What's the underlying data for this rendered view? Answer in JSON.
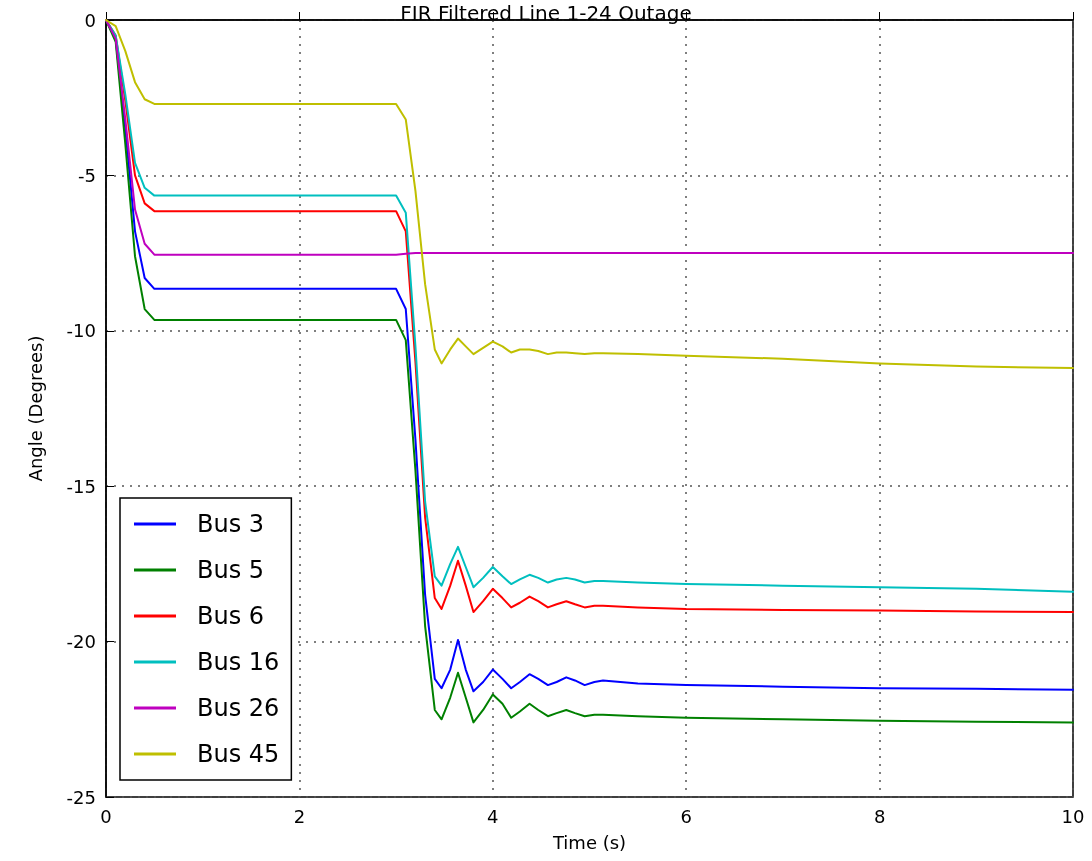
{
  "chart_data": {
    "type": "line",
    "title": "FIR Filtered Line 1-24 Outage",
    "xlabel": "Time (s)",
    "ylabel": "Angle (Degrees)",
    "x": [
      0,
      0.1,
      0.2,
      0.3,
      0.4,
      0.5,
      1,
      2,
      3,
      3.1,
      3.2,
      3.3,
      3.4,
      3.47,
      3.56,
      3.64,
      3.72,
      3.8,
      3.9,
      4.0,
      4.1,
      4.19,
      4.28,
      4.38,
      4.47,
      4.57,
      4.66,
      4.76,
      4.85,
      4.95,
      5.05,
      5.14,
      5.5,
      6,
      7,
      8,
      9,
      10
    ],
    "series": [
      {
        "name": "Bus 3",
        "color": "#0000ff",
        "values": [
          0,
          -0.6,
          -3.5,
          -6.8,
          -8.3,
          -8.65,
          -8.65,
          -8.65,
          -8.65,
          -9.3,
          -13.5,
          -18.5,
          -21.2,
          -21.5,
          -20.9,
          -19.95,
          -20.9,
          -21.6,
          -21.3,
          -20.9,
          -21.2,
          -21.5,
          -21.3,
          -21.05,
          -21.2,
          -21.4,
          -21.3,
          -21.15,
          -21.25,
          -21.4,
          -21.3,
          -21.25,
          -21.35,
          -21.4,
          -21.45,
          -21.5,
          -21.52,
          -21.55
        ]
      },
      {
        "name": "Bus 5",
        "color": "#008000",
        "values": [
          0,
          -0.7,
          -4,
          -7.6,
          -9.3,
          -9.65,
          -9.65,
          -9.65,
          -9.65,
          -10.3,
          -14.5,
          -19.5,
          -22.2,
          -22.5,
          -21.8,
          -21,
          -21.8,
          -22.6,
          -22.2,
          -21.7,
          -22,
          -22.45,
          -22.25,
          -22,
          -22.2,
          -22.4,
          -22.3,
          -22.2,
          -22.3,
          -22.4,
          -22.35,
          -22.35,
          -22.4,
          -22.45,
          -22.5,
          -22.55,
          -22.58,
          -22.6
        ]
      },
      {
        "name": "Bus 6",
        "color": "#ff0000",
        "values": [
          0,
          -0.5,
          -2.6,
          -5,
          -5.9,
          -6.15,
          -6.15,
          -6.15,
          -6.15,
          -6.8,
          -11,
          -16,
          -18.6,
          -18.95,
          -18.2,
          -17.4,
          -18.2,
          -19.05,
          -18.7,
          -18.3,
          -18.6,
          -18.9,
          -18.75,
          -18.55,
          -18.7,
          -18.9,
          -18.8,
          -18.7,
          -18.8,
          -18.9,
          -18.85,
          -18.85,
          -18.9,
          -18.95,
          -18.98,
          -19,
          -19.03,
          -19.05
        ]
      },
      {
        "name": "Bus 16",
        "color": "#00bfbf",
        "values": [
          0,
          -0.5,
          -2.4,
          -4.6,
          -5.4,
          -5.65,
          -5.65,
          -5.65,
          -5.65,
          -6.2,
          -10.5,
          -15.5,
          -17.9,
          -18.2,
          -17.5,
          -16.95,
          -17.6,
          -18.25,
          -17.95,
          -17.6,
          -17.9,
          -18.15,
          -18,
          -17.85,
          -17.95,
          -18.1,
          -18,
          -17.95,
          -18,
          -18.1,
          -18.05,
          -18.05,
          -18.1,
          -18.15,
          -18.2,
          -18.25,
          -18.3,
          -18.4
        ]
      },
      {
        "name": "Bus 26",
        "color": "#bf00bf",
        "values": [
          0,
          -0.6,
          -3.2,
          -6.1,
          -7.2,
          -7.55,
          -7.55,
          -7.55,
          -7.55,
          -7.52,
          -7.5,
          -7.5,
          -7.5,
          -7.5,
          -7.5,
          -7.5,
          -7.5,
          -7.5,
          -7.5,
          -7.5,
          -7.5,
          -7.5,
          -7.5,
          -7.5,
          -7.5,
          -7.5,
          -7.5,
          -7.5,
          -7.5,
          -7.5,
          -7.5,
          -7.5,
          -7.5,
          -7.5,
          -7.5,
          -7.5,
          -7.5,
          -7.5
        ]
      },
      {
        "name": "Bus 45",
        "color": "#bfbf00",
        "values": [
          0,
          -0.2,
          -1,
          -2,
          -2.55,
          -2.7,
          -2.7,
          -2.7,
          -2.7,
          -3.2,
          -5.5,
          -8.5,
          -10.6,
          -11.05,
          -10.6,
          -10.25,
          -10.5,
          -10.75,
          -10.55,
          -10.35,
          -10.5,
          -10.7,
          -10.6,
          -10.6,
          -10.65,
          -10.75,
          -10.7,
          -10.7,
          -10.72,
          -10.75,
          -10.72,
          -10.72,
          -10.75,
          -10.8,
          -10.9,
          -11.05,
          -11.15,
          -11.2
        ]
      }
    ],
    "xlim": [
      0,
      10
    ],
    "xticks": [
      0,
      2,
      4,
      6,
      8,
      10
    ],
    "ylim": [
      -25,
      0
    ],
    "yticks": [
      -25,
      -20,
      -15,
      -10,
      -5,
      0
    ],
    "grid": true,
    "legend": "bottom left",
    "marker": "none",
    "line_style": "solid"
  }
}
